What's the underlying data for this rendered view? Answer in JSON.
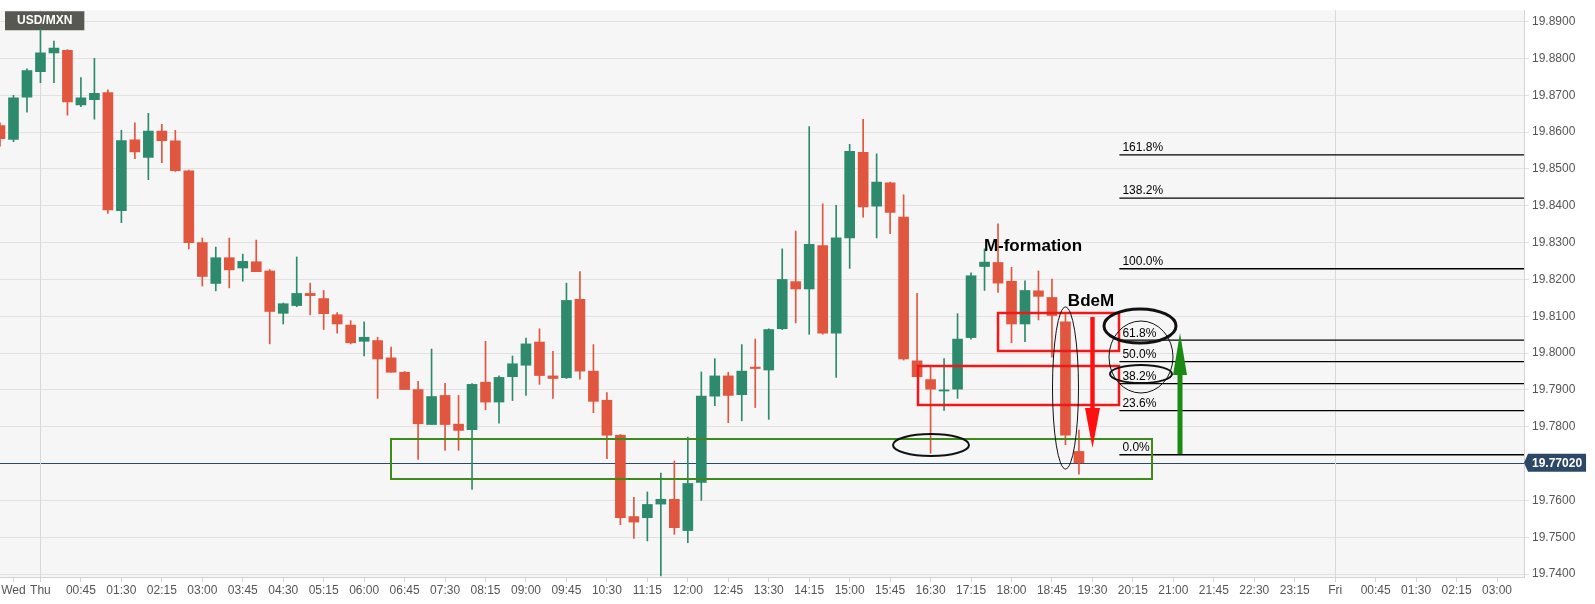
{
  "chart_data": {
    "type": "candlestick",
    "title": "USD/MXN",
    "categories": [
      null,
      "Wed",
      null,
      "Thu",
      null,
      null,
      "00:45",
      null,
      null,
      "01:30",
      null,
      null,
      "02:15",
      null,
      null,
      "03:00",
      null,
      null,
      "03:45",
      null,
      null,
      "04:30",
      null,
      null,
      "05:15",
      null,
      null,
      "06:00",
      null,
      null,
      "06:45",
      null,
      null,
      "07:30",
      null,
      null,
      "08:15",
      null,
      null,
      "09:00",
      null,
      null,
      "09:45",
      null,
      null,
      "10:30",
      null,
      null,
      "11:15",
      null,
      null,
      "12:00",
      null,
      null,
      "12:45",
      null,
      null,
      "13:30",
      null,
      null,
      "14:15",
      null,
      null,
      "15:00",
      null,
      null,
      "15:45",
      null,
      null,
      "16:30",
      null,
      null,
      "17:15",
      null,
      null,
      "18:00",
      null,
      null,
      "18:45",
      null,
      null,
      "19:30",
      null,
      null,
      "20:15",
      null,
      null,
      "21:00",
      null,
      null,
      "21:45",
      null,
      null,
      "22:30",
      null,
      null,
      "23:15",
      null,
      null,
      "Fri",
      null,
      null,
      "00:45",
      null,
      null,
      "01:30",
      null,
      null,
      "02:15",
      null,
      null,
      "03:00",
      null,
      null
    ],
    "ohlc": [
      [
        19.8618,
        19.8625,
        19.8562,
        19.8582
      ],
      [
        19.858,
        19.87,
        19.8574,
        19.8693
      ],
      [
        19.8695,
        19.8772,
        19.8654,
        19.8767
      ],
      [
        19.8764,
        19.888,
        19.8734,
        19.8815
      ],
      [
        19.8815,
        19.8847,
        19.8734,
        19.8828
      ],
      [
        19.8822,
        19.8824,
        19.8646,
        19.8682
      ],
      [
        19.8674,
        19.8748,
        19.8669,
        19.8693
      ],
      [
        19.8688,
        19.88,
        19.8635,
        19.8705
      ],
      [
        19.8707,
        19.8715,
        19.8379,
        19.8389
      ],
      [
        19.8387,
        19.8605,
        19.8354,
        19.8577
      ],
      [
        19.8579,
        19.8625,
        19.8528,
        19.8546
      ],
      [
        19.8531,
        19.8651,
        19.8471,
        19.8603
      ],
      [
        19.8603,
        19.8621,
        19.8517,
        19.8577
      ],
      [
        19.8576,
        19.8605,
        19.8493,
        19.8495
      ],
      [
        19.8495,
        19.8497,
        19.8283,
        19.83
      ],
      [
        19.83,
        19.8312,
        19.8182,
        19.8208
      ],
      [
        19.8189,
        19.8288,
        19.8169,
        19.8259
      ],
      [
        19.8259,
        19.8312,
        19.8177,
        19.8226
      ],
      [
        19.8231,
        19.8269,
        19.8195,
        19.8249
      ],
      [
        19.8248,
        19.8307,
        19.8221,
        19.8221
      ],
      [
        19.8223,
        19.8227,
        19.8025,
        19.8113
      ],
      [
        19.8108,
        19.8136,
        19.8079,
        19.8134
      ],
      [
        19.8129,
        19.8261,
        19.8126,
        19.8162
      ],
      [
        19.8162,
        19.819,
        19.8104,
        19.8156
      ],
      [
        19.8148,
        19.817,
        19.8064,
        19.8107
      ],
      [
        19.8104,
        19.811,
        19.8054,
        19.8079
      ],
      [
        19.8076,
        19.8088,
        19.8025,
        19.8028
      ],
      [
        19.8032,
        19.8085,
        19.7992,
        19.8043
      ],
      [
        19.8034,
        19.8043,
        19.7877,
        19.7984
      ],
      [
        19.7987,
        19.8016,
        19.7948,
        19.7948
      ],
      [
        19.7948,
        19.795,
        19.7901,
        19.7901
      ],
      [
        19.7901,
        19.7923,
        19.7711,
        19.7808
      ],
      [
        19.7806,
        19.8011,
        19.7806,
        19.7882
      ],
      [
        19.7885,
        19.7918,
        19.7736,
        19.7806
      ],
      [
        19.7807,
        19.7885,
        19.7736,
        19.779
      ],
      [
        19.7792,
        19.7917,
        19.763,
        19.7915
      ],
      [
        19.7921,
        19.8032,
        19.7846,
        19.7867
      ],
      [
        19.7867,
        19.7938,
        19.781,
        19.7934
      ],
      [
        19.7936,
        19.7992,
        19.7871,
        19.7971
      ],
      [
        19.7967,
        19.8041,
        19.7885,
        19.8025
      ],
      [
        19.803,
        19.8066,
        19.7915,
        19.7939
      ],
      [
        19.7938,
        19.8005,
        19.7877,
        19.7931
      ],
      [
        19.7933,
        19.819,
        19.7931,
        19.8143
      ],
      [
        19.8146,
        19.8221,
        19.7929,
        19.7951
      ],
      [
        19.7951,
        19.8023,
        19.7838,
        19.7869
      ],
      [
        19.7872,
        19.7893,
        19.7713,
        19.7777
      ],
      [
        19.7777,
        19.7779,
        19.7534,
        19.7553
      ],
      [
        19.7556,
        19.7608,
        19.7497,
        19.7541
      ],
      [
        19.7553,
        19.7623,
        19.749,
        19.7589
      ],
      [
        19.759,
        19.7674,
        19.7395,
        19.7603
      ],
      [
        19.7603,
        19.7707,
        19.7508,
        19.7526
      ],
      [
        19.7518,
        19.7772,
        19.7485,
        19.7646
      ],
      [
        19.7649,
        19.7949,
        19.76,
        19.7883
      ],
      [
        19.7883,
        19.7985,
        19.7857,
        19.7938
      ],
      [
        19.7938,
        19.7948,
        19.7811,
        19.7885
      ],
      [
        19.7887,
        19.8023,
        19.7816,
        19.7951
      ],
      [
        19.7962,
        19.8038,
        19.7852,
        19.7958
      ],
      [
        19.7954,
        19.8066,
        19.782,
        19.8064
      ],
      [
        19.8066,
        19.8283,
        19.8064,
        19.82
      ],
      [
        19.8194,
        19.8331,
        19.8082,
        19.8174
      ],
      [
        19.8174,
        19.8615,
        19.8051,
        19.8295
      ],
      [
        19.8292,
        19.8405,
        19.8051,
        19.8054
      ],
      [
        19.8054,
        19.8401,
        19.7934,
        19.8313
      ],
      [
        19.8313,
        19.8567,
        19.823,
        19.8548
      ],
      [
        19.8545,
        19.8635,
        19.8369,
        19.8397
      ],
      [
        19.8399,
        19.8541,
        19.8313,
        19.8464
      ],
      [
        19.8462,
        19.8464,
        19.8324,
        19.8382
      ],
      [
        19.8369,
        19.843,
        19.7981,
        19.7984
      ],
      [
        19.7979,
        19.8162,
        19.7936,
        19.7936
      ],
      [
        19.7928,
        19.7967,
        19.7728,
        19.7902
      ],
      [
        19.7897,
        19.7985,
        19.7844,
        19.79
      ],
      [
        19.7902,
        19.8107,
        19.7877,
        19.8038
      ],
      [
        19.8042,
        19.8218,
        19.8038,
        19.821
      ],
      [
        19.8235,
        19.8283,
        19.817,
        19.8247
      ],
      [
        19.8246,
        19.8351,
        19.8165,
        19.819
      ],
      [
        19.8195,
        19.8233,
        19.8028,
        19.8079
      ],
      [
        19.8079,
        19.8196,
        19.8031,
        19.817
      ],
      [
        19.8169,
        19.8223,
        19.809,
        19.8154
      ],
      [
        19.8151,
        19.8201,
        19.7989,
        19.8102
      ],
      [
        19.8085,
        19.8105,
        19.7751,
        19.7777
      ],
      [
        19.7733,
        19.7791,
        19.7671,
        19.7702
      ],
      null,
      null,
      null,
      null,
      null,
      null,
      null,
      null,
      null,
      null,
      null,
      null,
      null,
      null,
      null,
      null,
      null,
      null,
      null,
      null,
      null,
      null,
      null,
      null,
      null,
      null,
      null,
      null,
      null,
      null,
      null,
      null,
      null
    ],
    "colors": [
      "#e0563f",
      "#2e8a6c",
      "#2e8a6c",
      "#2e8a6c",
      "#2e8a6c",
      "#e0563f",
      "#2e8a6c",
      "#2e8a6c",
      "#e0563f",
      "#2e8a6c",
      "#e0563f",
      "#2e8a6c",
      "#e0563f",
      "#e0563f",
      "#e0563f",
      "#e0563f",
      "#2e8a6c",
      "#e0563f",
      "#2e8a6c",
      "#e0563f",
      "#e0563f",
      "#2e8a6c",
      "#2e8a6c",
      "#e0563f",
      "#e0563f",
      "#e0563f",
      "#e0563f",
      "#2e8a6c",
      "#e0563f",
      "#e0563f",
      "#e0563f",
      "#e0563f",
      "#2e8a6c",
      "#e0563f",
      "#e0563f",
      "#2e8a6c",
      "#e0563f",
      "#2e8a6c",
      "#2e8a6c",
      "#2e8a6c",
      "#e0563f",
      "#e0563f",
      "#2e8a6c",
      "#e0563f",
      "#e0563f",
      "#e0563f",
      "#e0563f",
      "#e0563f",
      "#2e8a6c",
      "#2e8a6c",
      "#e0563f",
      "#2e8a6c",
      "#2e8a6c",
      "#2e8a6c",
      "#e0563f",
      "#2e8a6c",
      "#e0563f",
      "#2e8a6c",
      "#2e8a6c",
      "#e0563f",
      "#2e8a6c",
      "#e0563f",
      "#2e8a6c",
      "#2e8a6c",
      "#e0563f",
      "#2e8a6c",
      "#e0563f",
      "#e0563f",
      "#e0563f",
      "#e0563f",
      "#2e8a6c",
      "#2e8a6c",
      "#2e8a6c",
      "#2e8a6c",
      "#e0563f",
      "#e0563f",
      "#2e8a6c",
      "#e0563f",
      "#e0563f",
      "#e0563f",
      "#e0563f",
      null,
      null,
      null,
      null,
      null,
      null,
      null,
      null,
      null,
      null,
      null,
      null,
      null,
      null,
      null,
      null,
      null,
      null,
      null,
      null,
      null,
      null,
      null,
      null,
      null,
      null,
      null,
      null,
      null,
      null,
      null,
      null,
      null
    ],
    "series": [
      {
        "type": "line",
        "name": "161.8%",
        "color": "#000000",
        "values": [
          null,
          null,
          null,
          null,
          null,
          null,
          null,
          null,
          null,
          null,
          null,
          null,
          null,
          null,
          null,
          null,
          null,
          null,
          null,
          null,
          null,
          null,
          null,
          null,
          null,
          null,
          null,
          null,
          null,
          null,
          null,
          null,
          null,
          null,
          null,
          null,
          null,
          null,
          null,
          null,
          null,
          null,
          null,
          null,
          null,
          null,
          null,
          null,
          null,
          null,
          null,
          null,
          null,
          null,
          null,
          null,
          null,
          null,
          null,
          null,
          null,
          null,
          null,
          null,
          null,
          null,
          null,
          null,
          null,
          null,
          null,
          null,
          null,
          null,
          null,
          null,
          null,
          null,
          null,
          null,
          null,
          null,
          null,
          19.8538,
          19.8538,
          19.8538,
          19.8538,
          19.8538,
          19.8538,
          19.8538,
          19.8538,
          19.8538,
          19.8538,
          19.8538,
          19.8538,
          19.8538,
          19.8538,
          19.8538,
          19.8538,
          19.8538,
          19.8538,
          19.8538,
          19.8538,
          19.8538,
          19.8538,
          19.8538,
          19.8538,
          19.8538,
          19.8538,
          19.8538,
          19.8538,
          19.8538,
          19.8538,
          19.8538
        ]
      },
      {
        "type": "line",
        "name": "138.2%",
        "color": "#000000",
        "values": [
          null,
          null,
          null,
          null,
          null,
          null,
          null,
          null,
          null,
          null,
          null,
          null,
          null,
          null,
          null,
          null,
          null,
          null,
          null,
          null,
          null,
          null,
          null,
          null,
          null,
          null,
          null,
          null,
          null,
          null,
          null,
          null,
          null,
          null,
          null,
          null,
          null,
          null,
          null,
          null,
          null,
          null,
          null,
          null,
          null,
          null,
          null,
          null,
          null,
          null,
          null,
          null,
          null,
          null,
          null,
          null,
          null,
          null,
          null,
          null,
          null,
          null,
          null,
          null,
          null,
          null,
          null,
          null,
          null,
          null,
          null,
          null,
          null,
          null,
          null,
          null,
          null,
          null,
          null,
          null,
          null,
          null,
          null,
          19.8421,
          19.8421,
          19.8421,
          19.8421,
          19.8421,
          19.8421,
          19.8421,
          19.8421,
          19.8421,
          19.8421,
          19.8421,
          19.8421,
          19.8421,
          19.8421,
          19.8421,
          19.8421,
          19.8421,
          19.8421,
          19.8421,
          19.8421,
          19.8421,
          19.8421,
          19.8421,
          19.8421,
          19.8421,
          19.8421,
          19.8421,
          19.8421,
          19.8421,
          19.8421,
          19.8421
        ]
      },
      {
        "type": "line",
        "name": "100.0%",
        "color": "#000000",
        "values": [
          null,
          null,
          null,
          null,
          null,
          null,
          null,
          null,
          null,
          null,
          null,
          null,
          null,
          null,
          null,
          null,
          null,
          null,
          null,
          null,
          null,
          null,
          null,
          null,
          null,
          null,
          null,
          null,
          null,
          null,
          null,
          null,
          null,
          null,
          null,
          null,
          null,
          null,
          null,
          null,
          null,
          null,
          null,
          null,
          null,
          null,
          null,
          null,
          null,
          null,
          null,
          null,
          null,
          null,
          null,
          null,
          null,
          null,
          null,
          null,
          null,
          null,
          null,
          null,
          null,
          null,
          null,
          null,
          null,
          null,
          null,
          null,
          null,
          null,
          null,
          null,
          null,
          null,
          null,
          null,
          null,
          null,
          null,
          19.8229,
          19.8229,
          19.8229,
          19.8229,
          19.8229,
          19.8229,
          19.8229,
          19.8229,
          19.8229,
          19.8229,
          19.8229,
          19.8229,
          19.8229,
          19.8229,
          19.8229,
          19.8229,
          19.8229,
          19.8229,
          19.8229,
          19.8229,
          19.8229,
          19.8229,
          19.8229,
          19.8229,
          19.8229,
          19.8229,
          19.8229,
          19.8229,
          19.8229,
          19.8229,
          19.8229
        ]
      },
      {
        "type": "line",
        "name": "61.8%",
        "color": "#000000",
        "values": [
          null,
          null,
          null,
          null,
          null,
          null,
          null,
          null,
          null,
          null,
          null,
          null,
          null,
          null,
          null,
          null,
          null,
          null,
          null,
          null,
          null,
          null,
          null,
          null,
          null,
          null,
          null,
          null,
          null,
          null,
          null,
          null,
          null,
          null,
          null,
          null,
          null,
          null,
          null,
          null,
          null,
          null,
          null,
          null,
          null,
          null,
          null,
          null,
          null,
          null,
          null,
          null,
          null,
          null,
          null,
          null,
          null,
          null,
          null,
          null,
          null,
          null,
          null,
          null,
          null,
          null,
          null,
          null,
          null,
          null,
          null,
          null,
          null,
          null,
          null,
          null,
          null,
          null,
          null,
          null,
          null,
          null,
          null,
          19.8035,
          19.8035,
          19.8035,
          19.8035,
          19.8035,
          19.8035,
          19.8035,
          19.8035,
          19.8035,
          19.8035,
          19.8035,
          19.8035,
          19.8035,
          19.8035,
          19.8035,
          19.8035,
          19.8035,
          19.8035,
          19.8035,
          19.8035,
          19.8035,
          19.8035,
          19.8035,
          19.8035,
          19.8035,
          19.8035,
          19.8035,
          19.8035,
          19.8035,
          19.8035,
          19.8035
        ]
      },
      {
        "type": "line",
        "name": "50.0%",
        "color": "#000000",
        "values": [
          null,
          null,
          null,
          null,
          null,
          null,
          null,
          null,
          null,
          null,
          null,
          null,
          null,
          null,
          null,
          null,
          null,
          null,
          null,
          null,
          null,
          null,
          null,
          null,
          null,
          null,
          null,
          null,
          null,
          null,
          null,
          null,
          null,
          null,
          null,
          null,
          null,
          null,
          null,
          null,
          null,
          null,
          null,
          null,
          null,
          null,
          null,
          null,
          null,
          null,
          null,
          null,
          null,
          null,
          null,
          null,
          null,
          null,
          null,
          null,
          null,
          null,
          null,
          null,
          null,
          null,
          null,
          null,
          null,
          null,
          null,
          null,
          null,
          null,
          null,
          null,
          null,
          null,
          null,
          null,
          null,
          null,
          null,
          19.7977,
          19.7977,
          19.7977,
          19.7977,
          19.7977,
          19.7977,
          19.7977,
          19.7977,
          19.7977,
          19.7977,
          19.7977,
          19.7977,
          19.7977,
          19.7977,
          19.7977,
          19.7977,
          19.7977,
          19.7977,
          19.7977,
          19.7977,
          19.7977,
          19.7977,
          19.7977,
          19.7977,
          19.7977,
          19.7977,
          19.7977,
          19.7977,
          19.7977,
          19.7977,
          19.7977
        ]
      },
      {
        "type": "line",
        "name": "38.2%",
        "color": "#000000",
        "values": [
          null,
          null,
          null,
          null,
          null,
          null,
          null,
          null,
          null,
          null,
          null,
          null,
          null,
          null,
          null,
          null,
          null,
          null,
          null,
          null,
          null,
          null,
          null,
          null,
          null,
          null,
          null,
          null,
          null,
          null,
          null,
          null,
          null,
          null,
          null,
          null,
          null,
          null,
          null,
          null,
          null,
          null,
          null,
          null,
          null,
          null,
          null,
          null,
          null,
          null,
          null,
          null,
          null,
          null,
          null,
          null,
          null,
          null,
          null,
          null,
          null,
          null,
          null,
          null,
          null,
          null,
          null,
          null,
          null,
          null,
          null,
          null,
          null,
          null,
          null,
          null,
          null,
          null,
          null,
          null,
          null,
          null,
          null,
          19.7917,
          19.7917,
          19.7917,
          19.7917,
          19.7917,
          19.7917,
          19.7917,
          19.7917,
          19.7917,
          19.7917,
          19.7917,
          19.7917,
          19.7917,
          19.7917,
          19.7917,
          19.7917,
          19.7917,
          19.7917,
          19.7917,
          19.7917,
          19.7917,
          19.7917,
          19.7917,
          19.7917,
          19.7917,
          19.7917,
          19.7917,
          19.7917,
          19.7917,
          19.7917,
          19.7917
        ]
      },
      {
        "type": "line",
        "name": "23.6%",
        "color": "#000000",
        "values": [
          null,
          null,
          null,
          null,
          null,
          null,
          null,
          null,
          null,
          null,
          null,
          null,
          null,
          null,
          null,
          null,
          null,
          null,
          null,
          null,
          null,
          null,
          null,
          null,
          null,
          null,
          null,
          null,
          null,
          null,
          null,
          null,
          null,
          null,
          null,
          null,
          null,
          null,
          null,
          null,
          null,
          null,
          null,
          null,
          null,
          null,
          null,
          null,
          null,
          null,
          null,
          null,
          null,
          null,
          null,
          null,
          null,
          null,
          null,
          null,
          null,
          null,
          null,
          null,
          null,
          null,
          null,
          null,
          null,
          null,
          null,
          null,
          null,
          null,
          null,
          null,
          null,
          null,
          null,
          null,
          null,
          null,
          null,
          19.7844,
          19.7844,
          19.7844,
          19.7844,
          19.7844,
          19.7844,
          19.7844,
          19.7844,
          19.7844,
          19.7844,
          19.7844,
          19.7844,
          19.7844,
          19.7844,
          19.7844,
          19.7844,
          19.7844,
          19.7844,
          19.7844,
          19.7844,
          19.7844,
          19.7844,
          19.7844,
          19.7844,
          19.7844,
          19.7844,
          19.7844,
          19.7844,
          19.7844,
          19.7844,
          19.7844
        ]
      },
      {
        "type": "line",
        "name": "0.0%",
        "color": "#000000",
        "values": [
          null,
          null,
          null,
          null,
          null,
          null,
          null,
          null,
          null,
          null,
          null,
          null,
          null,
          null,
          null,
          null,
          null,
          null,
          null,
          null,
          null,
          null,
          null,
          null,
          null,
          null,
          null,
          null,
          null,
          null,
          null,
          null,
          null,
          null,
          null,
          null,
          null,
          null,
          null,
          null,
          null,
          null,
          null,
          null,
          null,
          null,
          null,
          null,
          null,
          null,
          null,
          null,
          null,
          null,
          null,
          null,
          null,
          null,
          null,
          null,
          null,
          null,
          null,
          null,
          null,
          null,
          null,
          null,
          null,
          null,
          null,
          null,
          null,
          null,
          null,
          null,
          null,
          null,
          null,
          null,
          null,
          null,
          null,
          19.7724,
          19.7724,
          19.7724,
          19.7724,
          19.7724,
          19.7724,
          19.7724,
          19.7724,
          19.7724,
          19.7724,
          19.7724,
          19.7724,
          19.7724,
          19.7724,
          19.7724,
          19.7724,
          19.7724,
          19.7724,
          19.7724,
          19.7724,
          19.7724,
          19.7724,
          19.7724,
          19.7724,
          19.7724,
          19.7724,
          19.7724,
          19.7724,
          19.7724,
          19.7724,
          19.7724
        ]
      }
    ],
    "annotations": [
      "M-formation",
      "BdeM"
    ],
    "ref_lines": [
      {
        "axis": "y",
        "value": 19.7702,
        "label": "19.77020",
        "color": "#2c4866"
      },
      {
        "axis": "x",
        "value": "Thu",
        "color": "#d9d9d9"
      },
      {
        "axis": "x",
        "value": "Fri",
        "color": "#d9d9d9"
      }
    ],
    "ylim": [
      19.7392,
      19.8931
    ],
    "yticks": [
      {
        "value": 19.74,
        "label": "19.7400"
      },
      {
        "value": 19.75,
        "label": "19.7500"
      },
      {
        "value": 19.76,
        "label": "19.7600"
      },
      {
        "value": 19.77,
        "label": null
      },
      {
        "value": 19.78,
        "label": "19.7800"
      },
      {
        "value": 19.79,
        "label": "19.7900"
      },
      {
        "value": 19.8,
        "label": "19.8000"
      },
      {
        "value": 19.81,
        "label": "19.8100"
      },
      {
        "value": 19.82,
        "label": "19.8200"
      },
      {
        "value": 19.83,
        "label": "19.8300"
      },
      {
        "value": 19.84,
        "label": "19.8400"
      },
      {
        "value": 19.85,
        "label": "19.8500"
      },
      {
        "value": 19.86,
        "label": "19.8600"
      },
      {
        "value": 19.87,
        "label": "19.8700"
      },
      {
        "value": 19.88,
        "label": "19.8800"
      },
      {
        "value": 19.89,
        "label": "19.8900"
      }
    ],
    "grid": "y",
    "marker": "none"
  }
}
